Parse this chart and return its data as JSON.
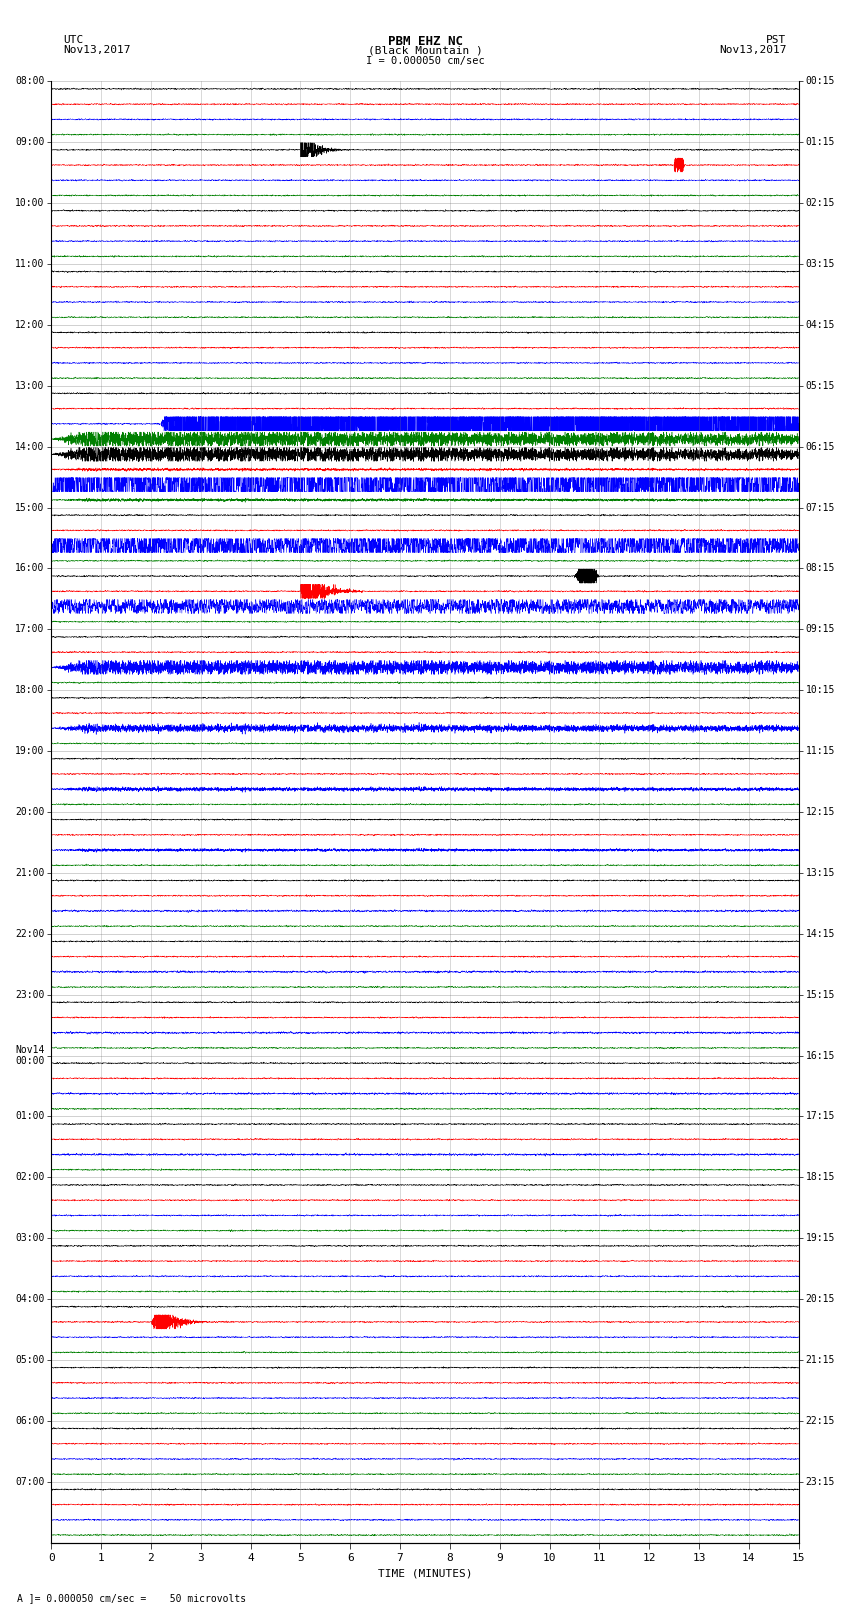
{
  "title_line1": "PBM EHZ NC",
  "title_line2": "(Black Mountain )",
  "scale_label": "I = 0.000050 cm/sec",
  "utc_label": "UTC\nNov13,2017",
  "pst_label": "PST\nNov13,2017",
  "xlabel": "TIME (MINUTES)",
  "bottom_label": "A ]= 0.000050 cm/sec =    50 microvolts",
  "left_times_utc": [
    "08:00",
    "09:00",
    "10:00",
    "11:00",
    "12:00",
    "13:00",
    "14:00",
    "15:00",
    "16:00",
    "17:00",
    "18:00",
    "19:00",
    "20:00",
    "21:00",
    "22:00",
    "23:00",
    "Nov14\n00:00",
    "01:00",
    "02:00",
    "03:00",
    "04:00",
    "05:00",
    "06:00",
    "07:00"
  ],
  "right_times_pst": [
    "00:15",
    "01:15",
    "02:15",
    "03:15",
    "04:15",
    "05:15",
    "06:15",
    "07:15",
    "08:15",
    "09:15",
    "10:15",
    "11:15",
    "12:15",
    "13:15",
    "14:15",
    "15:15",
    "16:15",
    "17:15",
    "18:15",
    "19:15",
    "20:15",
    "21:15",
    "22:15",
    "23:15"
  ],
  "n_rows": 24,
  "n_subrows": 4,
  "minutes_per_row": 15,
  "bg_color": "#ffffff",
  "line_colors": [
    "black",
    "red",
    "blue",
    "green"
  ],
  "grid_color": "#aaaaaa",
  "figsize": [
    8.5,
    16.13
  ],
  "dpi": 100,
  "eq_hour_row": 5,
  "eq_minute": 2.2,
  "eq_subrow": 2
}
